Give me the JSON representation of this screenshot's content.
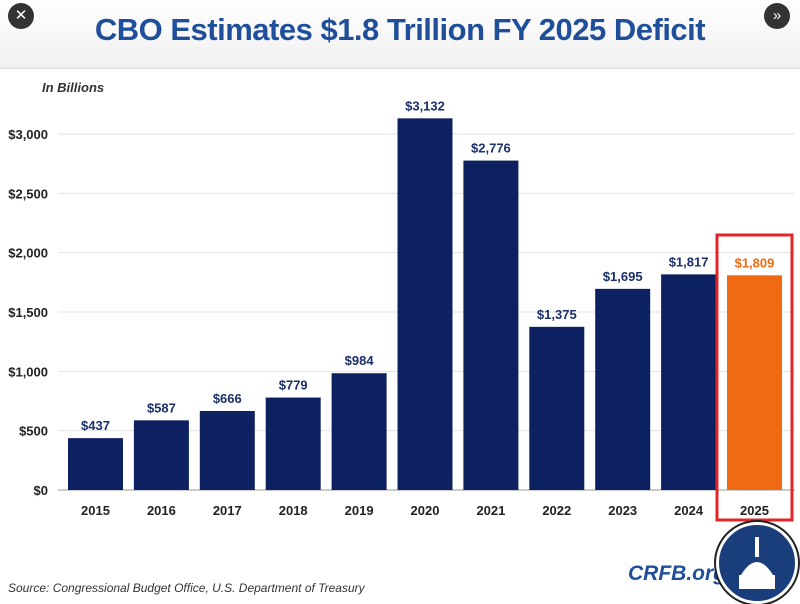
{
  "header": {
    "title": "CBO Estimates $1.8 Trillion FY 2025 Deficit",
    "close_icon": "close-icon",
    "next_icon": "double-chevron-right-icon"
  },
  "chart_data": {
    "type": "bar",
    "title": "CBO Estimates $1.8 Trillion FY 2025 Deficit",
    "unit_label": "In Billions",
    "categories": [
      "2015",
      "2016",
      "2017",
      "2018",
      "2019",
      "2020",
      "2021",
      "2022",
      "2023",
      "2024",
      "2025"
    ],
    "values": [
      437,
      587,
      666,
      779,
      984,
      3132,
      2776,
      1375,
      1695,
      1817,
      1809
    ],
    "data_labels": [
      "$437",
      "$587",
      "$666",
      "$779",
      "$984",
      "$3,132",
      "$2,776",
      "$1,375",
      "$1,695",
      "$1,817",
      "$1,809"
    ],
    "ylim": [
      0,
      3000
    ],
    "yticks": [
      0,
      500,
      1000,
      1500,
      2000,
      2500,
      3000
    ],
    "ytick_labels": [
      "$0",
      "$500",
      "$1,000",
      "$1,500",
      "$2,000",
      "$2,500",
      "$3,000"
    ],
    "grid": true,
    "colors": {
      "default": "#0d2160",
      "highlight": "#f06a12",
      "highlight_box": "#e0262a"
    },
    "highlight_category": "2025"
  },
  "footer": {
    "source": "Source: Congressional Budget Office, U.S. Department of Treasury",
    "brand": "CRFB.org"
  }
}
